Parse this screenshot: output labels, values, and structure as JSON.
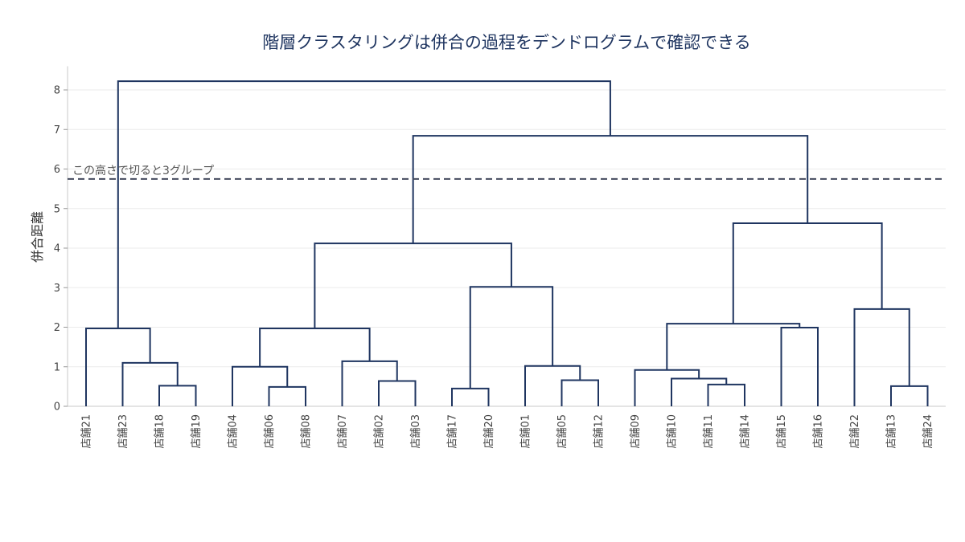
{
  "chart_data": {
    "type": "dendrogram",
    "title": "階層クラスタリングは併合の過程をデンドログラムで確認できる",
    "ylabel": "併合距離",
    "ylim": [
      0,
      8.6
    ],
    "yticks": [
      0,
      1,
      2,
      3,
      4,
      5,
      6,
      7,
      8
    ],
    "grid": true,
    "leaves": [
      "店舗21",
      "店舗23",
      "店舗18",
      "店舗19",
      "店舗04",
      "店舗06",
      "店舗08",
      "店舗07",
      "店舗02",
      "店舗03",
      "店舗17",
      "店舗20",
      "店舗01",
      "店舗05",
      "店舗12",
      "店舗09",
      "店舗10",
      "店舗11",
      "店舗14",
      "店舗15",
      "店舗16",
      "店舗22",
      "店舗13",
      "店舗24"
    ],
    "merges": [
      {
        "left": "店舗18",
        "right": "店舗19",
        "height": 0.52
      },
      {
        "left": "店舗23",
        "right": "店舗18+店舗19",
        "height": 1.1
      },
      {
        "left": "店舗21",
        "right": "店舗23+店舗18+店舗19",
        "height": 1.97
      },
      {
        "left": "店舗06",
        "right": "店舗08",
        "height": 0.49
      },
      {
        "left": "店舗04",
        "right": "店舗06+店舗08",
        "height": 1.0
      },
      {
        "left": "店舗02",
        "right": "店舗03",
        "height": 0.64
      },
      {
        "left": "店舗07",
        "right": "店舗02+店舗03",
        "height": 1.14
      },
      {
        "left": "店舗04-08",
        "right": "店舗07-03",
        "height": 1.97
      },
      {
        "left": "店舗17",
        "right": "店舗20",
        "height": 0.45
      },
      {
        "left": "店舗05",
        "right": "店舗12",
        "height": 0.66
      },
      {
        "left": "店舗01",
        "right": "店舗05+店舗12",
        "height": 1.02
      },
      {
        "left": "店舗17+店舗20",
        "right": "店舗01+店舗05+店舗12",
        "height": 3.02
      },
      {
        "left": "店舗04-03",
        "right": "店舗17-12",
        "height": 4.12
      },
      {
        "left": "店舗11",
        "right": "店舗14",
        "height": 0.55
      },
      {
        "left": "店舗10",
        "right": "店舗11+店舗14",
        "height": 0.7
      },
      {
        "left": "店舗09",
        "right": "店舗10+店舗11+店舗14",
        "height": 0.92
      },
      {
        "left": "店舗15",
        "right": "店舗16",
        "height": 1.99
      },
      {
        "left": "店舗09-14",
        "right": "店舗15+店舗16",
        "height": 2.09
      },
      {
        "left": "店舗13",
        "right": "店舗24",
        "height": 0.51
      },
      {
        "left": "店舗22",
        "right": "店舗13+店舗24",
        "height": 2.46
      },
      {
        "left": "店舗09-16",
        "right": "店舗22-24",
        "height": 4.63
      },
      {
        "left": "店舗04-12",
        "right": "店舗09-24",
        "height": 6.84
      },
      {
        "left": "店舗21-19",
        "right": "店舗04-24",
        "height": 8.22
      }
    ],
    "cut_line": {
      "height": 5.75,
      "label": "この高さで切ると3グループ"
    }
  },
  "colors": {
    "link": "#1f3560",
    "cut_line": "#444b5e",
    "grid": "#ebebeb"
  }
}
